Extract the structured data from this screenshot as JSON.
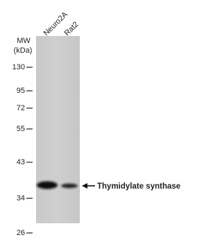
{
  "lanes": [
    "Neuro2A",
    "Rat2"
  ],
  "mw_label": "MW",
  "mw_unit": "(kDa)",
  "markers": [
    130,
    95,
    72,
    55,
    43,
    34,
    26
  ],
  "band_label": "Thymidylate synthase"
}
